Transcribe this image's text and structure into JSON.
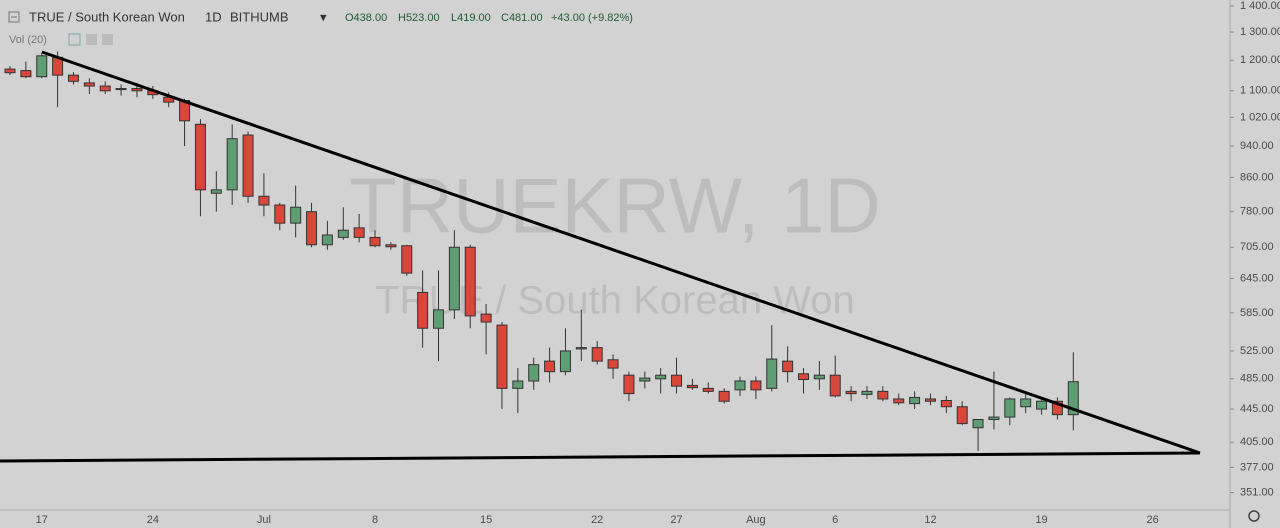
{
  "chart_data": {
    "type": "candlestick",
    "symbol": "TRUE / South Korean Won",
    "interval": "1D",
    "exchange": "BITHUMB",
    "header_values": [
      "O438.00",
      "H523.00",
      "L419.00",
      "C481.00",
      "+43.00 (+9.82%)"
    ],
    "indicator": "Vol (20)",
    "watermark": [
      "TRUEKRW, 1D",
      "TRUE / South Korean Won"
    ],
    "categories": [
      null,
      null,
      "17",
      null,
      null,
      null,
      null,
      null,
      null,
      "24",
      null,
      null,
      null,
      null,
      null,
      null,
      "Jul",
      null,
      null,
      null,
      null,
      null,
      null,
      "8",
      null,
      null,
      null,
      null,
      null,
      null,
      "15",
      null,
      null,
      null,
      null,
      null,
      null,
      "22",
      null,
      null,
      null,
      null,
      "27",
      null,
      null,
      null,
      null,
      "Aug",
      null,
      null,
      null,
      null,
      "6",
      null,
      null,
      null,
      null,
      null,
      "12",
      null,
      null,
      null,
      null,
      null,
      null,
      "19",
      null,
      null,
      null,
      null,
      null,
      null,
      "26",
      null,
      null,
      null,
      null
    ],
    "open": [
      1170,
      1165,
      1145,
      1210,
      1150,
      1125,
      1115,
      1105,
      1107,
      1100,
      1080,
      1070,
      1000,
      822,
      830,
      970,
      815,
      795,
      755,
      780,
      710,
      725,
      745,
      725,
      710,
      708,
      620,
      560,
      590,
      705,
      583,
      565,
      472,
      482,
      510,
      495,
      528,
      530,
      512,
      490,
      482,
      485,
      490,
      476,
      472,
      468,
      470,
      482,
      472,
      510,
      492,
      485,
      490,
      468,
      464,
      468,
      458,
      452,
      458,
      456,
      448,
      422,
      432,
      435,
      448,
      445,
      455,
      438,
      null,
      null,
      null,
      null,
      null,
      null,
      null,
      null,
      null
    ],
    "high": [
      1180,
      1195,
      1225,
      1230,
      1160,
      1140,
      1130,
      1120,
      1125,
      1115,
      1095,
      1075,
      1015,
      875,
      1000,
      980,
      870,
      800,
      840,
      800,
      760,
      790,
      775,
      740,
      715,
      710,
      660,
      660,
      740,
      710,
      600,
      570,
      500,
      515,
      530,
      560,
      590,
      540,
      520,
      495,
      495,
      500,
      515,
      485,
      480,
      472,
      488,
      488,
      565,
      532,
      500,
      510,
      518,
      475,
      475,
      475,
      465,
      468,
      465,
      462,
      455,
      430,
      495,
      460,
      465,
      460,
      460,
      523,
      null,
      null,
      null,
      null,
      null,
      null,
      null,
      null,
      null
    ],
    "low": [
      1150,
      1140,
      1140,
      1050,
      1120,
      1090,
      1090,
      1085,
      1080,
      1075,
      1050,
      940,
      770,
      780,
      795,
      800,
      770,
      740,
      725,
      705,
      700,
      720,
      715,
      705,
      700,
      650,
      530,
      510,
      575,
      560,
      520,
      445,
      440,
      470,
      480,
      490,
      510,
      505,
      485,
      455,
      472,
      465,
      465,
      470,
      465,
      452,
      462,
      458,
      468,
      480,
      465,
      470,
      460,
      455,
      458,
      455,
      450,
      445,
      450,
      440,
      425,
      395,
      420,
      425,
      440,
      438,
      432,
      419,
      null,
      null,
      null,
      null,
      null,
      null,
      null,
      null,
      null
    ],
    "close": [
      1158,
      1145,
      1215,
      1150,
      1130,
      1115,
      1100,
      1107,
      1100,
      1088,
      1065,
      1010,
      830,
      830,
      960,
      815,
      795,
      755,
      790,
      710,
      730,
      740,
      725,
      708,
      706,
      655,
      560,
      590,
      705,
      580,
      570,
      472,
      482,
      505,
      495,
      525,
      530,
      510,
      500,
      465,
      486,
      490,
      475,
      473,
      468,
      455,
      482,
      470,
      513,
      495,
      484,
      490,
      462,
      465,
      468,
      458,
      453,
      460,
      455,
      448,
      427,
      432,
      435,
      458,
      458,
      455,
      438,
      481,
      null,
      null,
      null,
      null,
      null,
      null,
      null,
      null,
      null
    ],
    "up_color": "#5f9e73",
    "down_color": "#d9473b",
    "log_scale": true,
    "ylim": [
      334,
      1424
    ],
    "yticks": [
      {
        "value": 1400,
        "label": "1 400.00"
      },
      {
        "value": 1300,
        "label": "1 300.00"
      },
      {
        "value": 1200,
        "label": "1 200.00"
      },
      {
        "value": 1100,
        "label": "1 100.00"
      },
      {
        "value": 1020,
        "label": "1 020.00"
      },
      {
        "value": 940,
        "label": "940.00"
      },
      {
        "value": 860,
        "label": "860.00"
      },
      {
        "value": 780,
        "label": "780.00"
      },
      {
        "value": 705,
        "label": "705.00"
      },
      {
        "value": 645,
        "label": "645.00"
      },
      {
        "value": 585,
        "label": "585.00"
      },
      {
        "value": 525,
        "label": "525.00"
      },
      {
        "value": 485,
        "label": "485.00"
      },
      {
        "value": 445,
        "label": "445.00"
      },
      {
        "value": 405,
        "label": "405.00"
      },
      {
        "value": 377,
        "label": "377.00"
      },
      {
        "value": 351,
        "label": "351.00"
      }
    ]
  }
}
